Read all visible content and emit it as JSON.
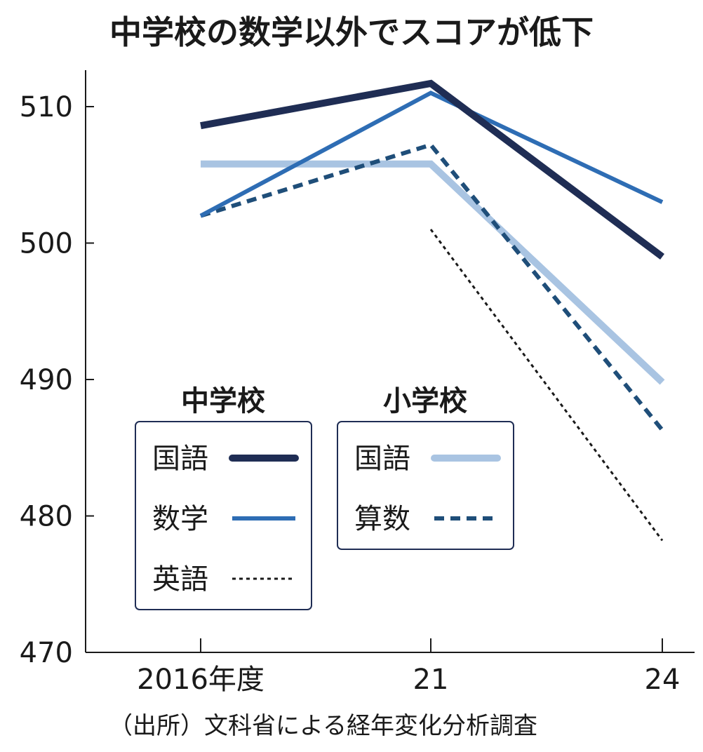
{
  "chart_data": {
    "type": "line",
    "title": "中学校の数学以外でスコアが低下",
    "source": "（出所）文科省による経年変化分析調査",
    "categories": [
      "2016年度",
      "21",
      "24"
    ],
    "ylim": [
      470,
      513
    ],
    "yticks": [
      470,
      480,
      490,
      500,
      510
    ],
    "grid": false,
    "legend_position": "inside-bottom-left",
    "legend_groups": [
      {
        "title": "中学校",
        "entries": [
          "国語",
          "数学",
          "英語"
        ]
      },
      {
        "title": "小学校",
        "entries": [
          "国語",
          "算数"
        ]
      }
    ],
    "series": [
      {
        "name": "国語",
        "group": "中学校",
        "style": "solid-thick",
        "color": "#1f2d54",
        "values": [
          508.6,
          511.7,
          499.0
        ]
      },
      {
        "name": "数学",
        "group": "中学校",
        "style": "solid",
        "color": "#2e6db4",
        "values": [
          502.0,
          511.0,
          503.0
        ]
      },
      {
        "name": "英語",
        "group": "中学校",
        "style": "dotted",
        "color": "#1a1a1a",
        "values": [
          null,
          501.0,
          478.2
        ]
      },
      {
        "name": "国語",
        "group": "小学校",
        "style": "solid-thick",
        "color": "#a9c4e2",
        "values": [
          505.8,
          505.8,
          489.8
        ]
      },
      {
        "name": "算数",
        "group": "小学校",
        "style": "dashed",
        "color": "#1f4e79",
        "values": [
          502.0,
          507.2,
          486.3
        ]
      }
    ]
  }
}
